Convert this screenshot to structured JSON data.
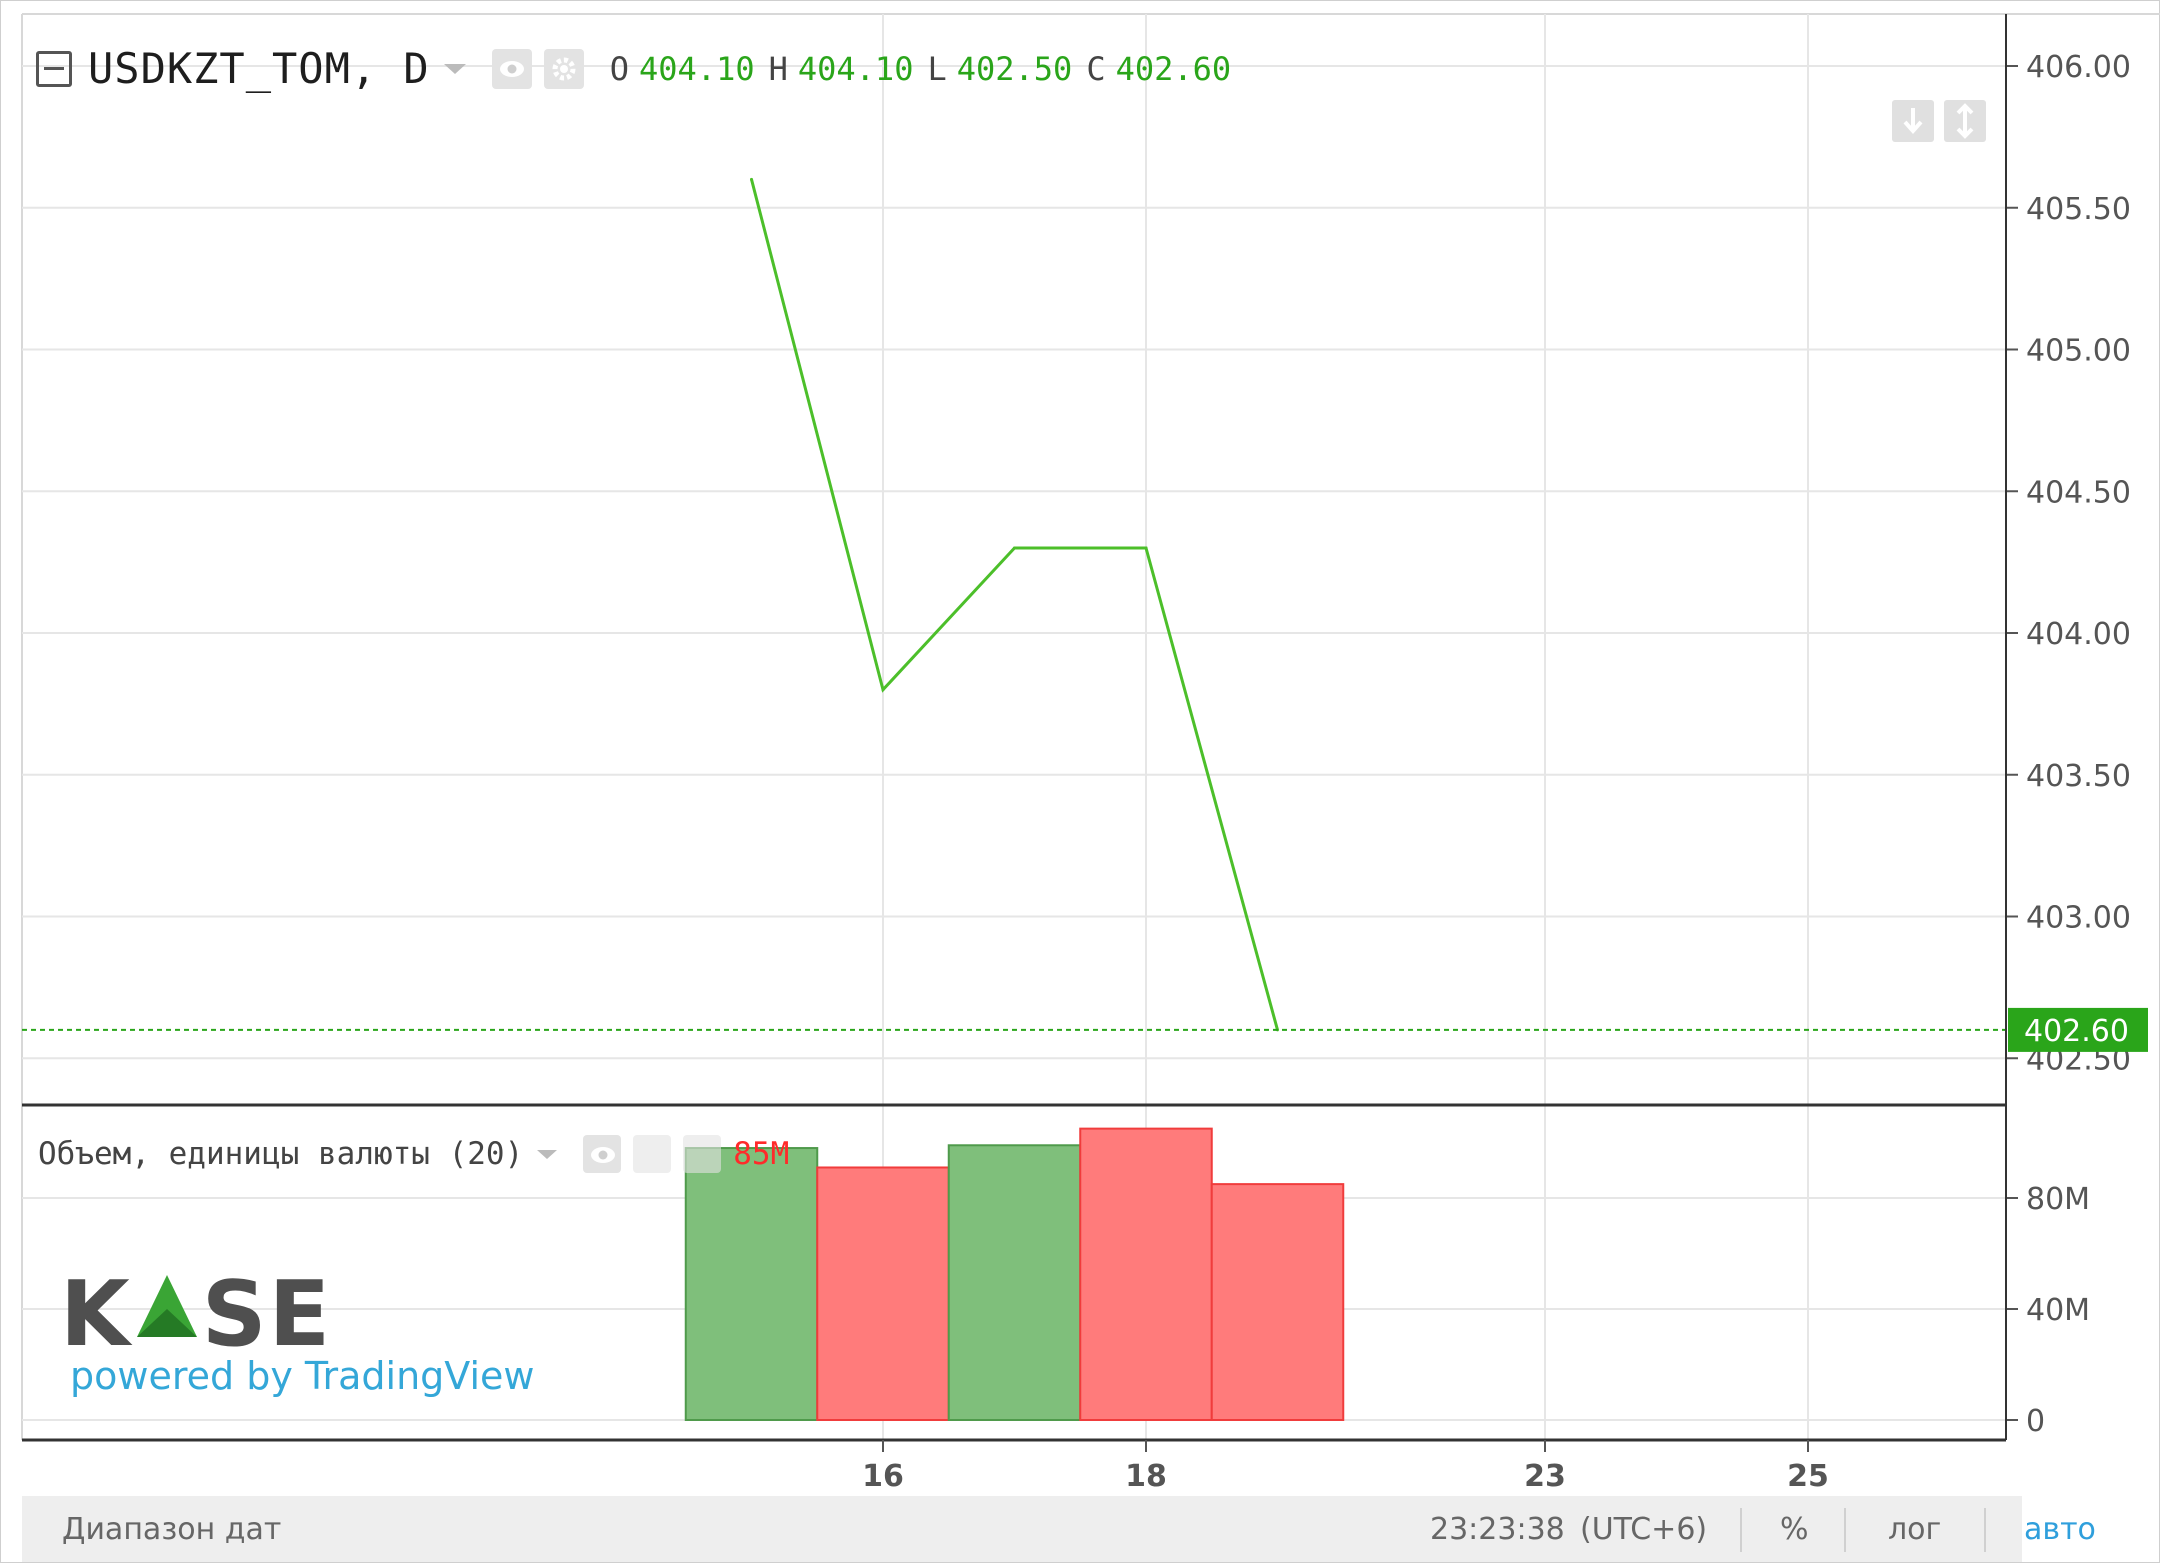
{
  "header": {
    "symbol": "USDKZT_TOM, D",
    "ohlc": [
      {
        "key": "O",
        "value": "404.10"
      },
      {
        "key": "H",
        "value": "404.10"
      },
      {
        "key": "L",
        "value": "402.50"
      },
      {
        "key": "C",
        "value": "402.60"
      }
    ]
  },
  "volume_pane": {
    "title": "Объем, единицы валюты (20)",
    "value": "85M"
  },
  "branding": {
    "logo_text": "KASE",
    "tagline": "powered by TradingView"
  },
  "bottom_bar": {
    "date_range": "Диапазон дат",
    "clock": "23:23:38",
    "timezone": "(UTC+6)",
    "percent": "%",
    "log": "лог",
    "auto": "авто"
  },
  "colors": {
    "line": "#4cbf2a",
    "up_volume": "#7fbf7b",
    "down_volume": "#ff7b7b",
    "last_price_badge": "#2aa51a",
    "grid": "#e6e6e6",
    "active_toggle": "#2f9fdc"
  },
  "chart_data": [
    {
      "type": "line",
      "name": "price",
      "x_ticks": [
        "16",
        "18",
        "23",
        "25"
      ],
      "y_ticks": [
        "406.00",
        "405.50",
        "405.00",
        "404.50",
        "404.00",
        "403.50",
        "403.00",
        "402.50"
      ],
      "ylim": [
        402.35,
        406.15
      ],
      "points": [
        {
          "day": 15,
          "y": 405.6
        },
        {
          "day": 16,
          "y": 403.8
        },
        {
          "day": 17,
          "y": 404.3
        },
        {
          "day": 18,
          "y": 404.3
        },
        {
          "day": 19,
          "y": 402.6
        }
      ],
      "last_price": 402.6,
      "last_price_label": "402.60",
      "grid": true
    },
    {
      "type": "bar",
      "name": "volume",
      "y_ticks": [
        "80M",
        "40M",
        "0"
      ],
      "ylim": [
        0,
        105
      ],
      "bars": [
        {
          "day": 15,
          "value": 98,
          "direction": "up"
        },
        {
          "day": 16,
          "value": 91,
          "direction": "down"
        },
        {
          "day": 17,
          "value": 99,
          "direction": "up"
        },
        {
          "day": 18,
          "value": 105,
          "direction": "down"
        },
        {
          "day": 19,
          "value": 85,
          "direction": "down"
        }
      ]
    }
  ]
}
